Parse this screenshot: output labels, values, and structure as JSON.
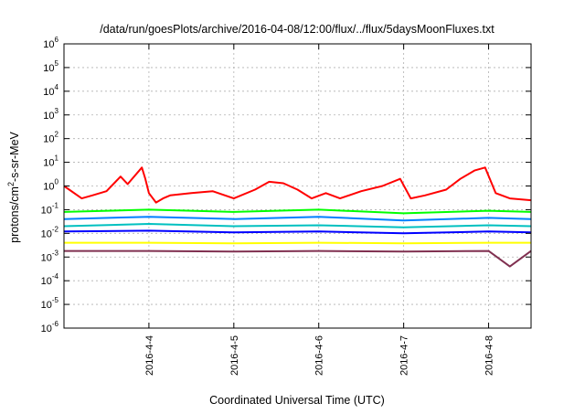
{
  "chart_data": {
    "type": "line",
    "title": "/data/run/goesPlots/archive/2016-04-08/12:00/flux/../flux/5daysMoonFluxes.txt",
    "xlabel": "Coordinated Universal Time (UTC)",
    "ylabel": {
      "base": "protons/cm",
      "sup": "2",
      "rest": "-s-sr-MeV"
    },
    "y_scale": "log",
    "ylim": [
      1e-06,
      1000000.0
    ],
    "y_ticks": [
      {
        "exp": "-6",
        "value": 1e-06
      },
      {
        "exp": "-5",
        "value": 1e-05
      },
      {
        "exp": "-4",
        "value": 0.0001
      },
      {
        "exp": "-3",
        "value": 0.001
      },
      {
        "exp": "-2",
        "value": 0.01
      },
      {
        "exp": "-1",
        "value": 0.1
      },
      {
        "exp": "0",
        "value": 1
      },
      {
        "exp": "1",
        "value": 10
      },
      {
        "exp": "2",
        "value": 100
      },
      {
        "exp": "3",
        "value": 1000
      },
      {
        "exp": "4",
        "value": 10000
      },
      {
        "exp": "5",
        "value": 100000
      },
      {
        "exp": "6",
        "value": 1000000
      }
    ],
    "xlim": [
      "2016-04-03T00:00",
      "2016-04-08T12:00"
    ],
    "x_ticks": [
      {
        "label": "2016-4-4",
        "time": "2016-04-04T00:00"
      },
      {
        "label": "2016-4-5",
        "time": "2016-04-05T00:00"
      },
      {
        "label": "2016-4-6",
        "time": "2016-04-06T00:00"
      },
      {
        "label": "2016-4-7",
        "time": "2016-04-07T00:00"
      },
      {
        "label": "2016-4-8",
        "time": "2016-04-08T00:00"
      }
    ],
    "grid": true,
    "series": [
      {
        "color": "#ff0000",
        "x": [
          "2016-04-03T00:00",
          "2016-04-03T05:00",
          "2016-04-03T08:00",
          "2016-04-03T12:00",
          "2016-04-03T16:00",
          "2016-04-03T18:00",
          "2016-04-03T22:00",
          "2016-04-03T23:00",
          "2016-04-04T00:00",
          "2016-04-04T02:00",
          "2016-04-04T04:00",
          "2016-04-04T06:00",
          "2016-04-04T12:00",
          "2016-04-04T18:00",
          "2016-04-05T00:00",
          "2016-04-05T06:00",
          "2016-04-05T10:00",
          "2016-04-05T14:00",
          "2016-04-05T18:00",
          "2016-04-05T22:00",
          "2016-04-06T02:00",
          "2016-04-06T06:00",
          "2016-04-06T12:00",
          "2016-04-06T18:00",
          "2016-04-06T23:00",
          "2016-04-07T02:00",
          "2016-04-07T06:00",
          "2016-04-07T12:00",
          "2016-04-07T16:00",
          "2016-04-07T20:00",
          "2016-04-07T23:00",
          "2016-04-08T02:00",
          "2016-04-08T06:00",
          "2016-04-08T12:00"
        ],
        "y": [
          1.0,
          0.3,
          0.4,
          0.6,
          2.5,
          1.2,
          6.0,
          2.0,
          0.5,
          0.2,
          0.3,
          0.4,
          0.5,
          0.6,
          0.3,
          0.7,
          1.5,
          1.3,
          0.7,
          0.3,
          0.5,
          0.3,
          0.6,
          1.0,
          2.0,
          0.3,
          0.4,
          0.7,
          2.0,
          4.5,
          6.0,
          0.5,
          0.3,
          0.25
        ]
      },
      {
        "color": "#00ff00",
        "x": [
          "2016-04-03T00:00",
          "2016-04-04T00:00",
          "2016-04-05T00:00",
          "2016-04-06T00:00",
          "2016-04-07T00:00",
          "2016-04-08T00:00",
          "2016-04-08T12:00"
        ],
        "y": [
          0.08,
          0.1,
          0.08,
          0.1,
          0.07,
          0.09,
          0.08
        ]
      },
      {
        "color": "#0080ff",
        "x": [
          "2016-04-03T00:00",
          "2016-04-04T00:00",
          "2016-04-05T00:00",
          "2016-04-06T00:00",
          "2016-04-07T00:00",
          "2016-04-08T00:00",
          "2016-04-08T12:00"
        ],
        "y": [
          0.04,
          0.05,
          0.04,
          0.05,
          0.035,
          0.045,
          0.04
        ]
      },
      {
        "color": "#00c0c0",
        "x": [
          "2016-04-03T00:00",
          "2016-04-04T00:00",
          "2016-04-05T00:00",
          "2016-04-06T00:00",
          "2016-04-07T00:00",
          "2016-04-08T00:00",
          "2016-04-08T12:00"
        ],
        "y": [
          0.02,
          0.025,
          0.02,
          0.022,
          0.018,
          0.022,
          0.02
        ]
      },
      {
        "color": "#0000ff",
        "x": [
          "2016-04-03T00:00",
          "2016-04-04T00:00",
          "2016-04-05T00:00",
          "2016-04-06T00:00",
          "2016-04-07T00:00",
          "2016-04-08T00:00",
          "2016-04-08T12:00"
        ],
        "y": [
          0.012,
          0.013,
          0.011,
          0.012,
          0.01,
          0.012,
          0.011
        ]
      },
      {
        "color": "#ffff00",
        "x": [
          "2016-04-03T00:00",
          "2016-04-04T00:00",
          "2016-04-05T00:00",
          "2016-04-06T00:00",
          "2016-04-07T00:00",
          "2016-04-08T00:00",
          "2016-04-08T12:00"
        ],
        "y": [
          0.004,
          0.004,
          0.0038,
          0.004,
          0.0038,
          0.004,
          0.004
        ]
      },
      {
        "color": "#803050",
        "x": [
          "2016-04-03T00:00",
          "2016-04-04T00:00",
          "2016-04-05T00:00",
          "2016-04-06T00:00",
          "2016-04-07T00:00",
          "2016-04-08T00:00",
          "2016-04-08T06:00",
          "2016-04-08T12:00"
        ],
        "y": [
          0.0018,
          0.0018,
          0.0017,
          0.0018,
          0.0017,
          0.0018,
          0.0004,
          0.0018
        ]
      }
    ]
  }
}
